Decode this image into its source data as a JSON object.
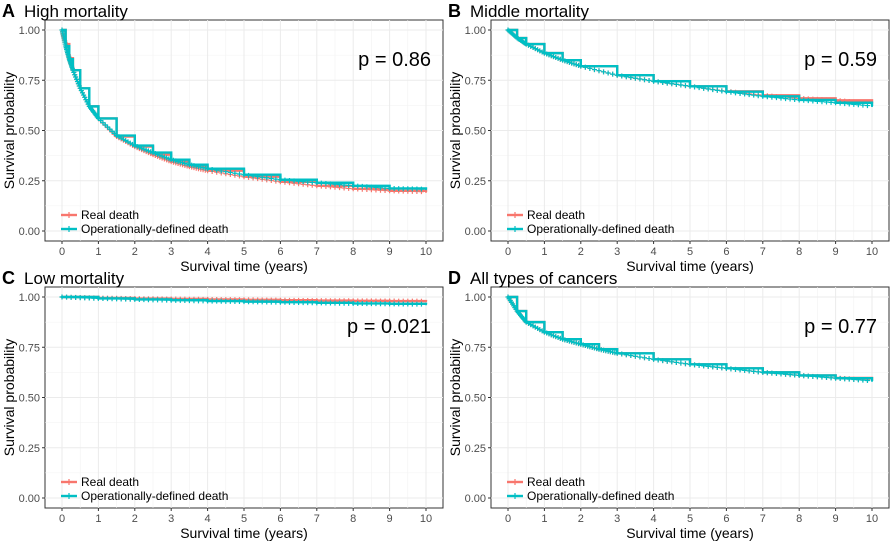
{
  "chart_data": [
    {
      "type": "line",
      "panel": "A",
      "title": "High mortality",
      "xlabel": "Survival time (years)",
      "ylabel": "Survival probability",
      "xlim": [
        0,
        10
      ],
      "ylim": [
        0,
        1
      ],
      "xticks": [
        "0",
        "1",
        "2",
        "3",
        "4",
        "5",
        "6",
        "7",
        "8",
        "9",
        "10"
      ],
      "yticks": [
        "0.00",
        "0.25",
        "0.50",
        "0.75",
        "1.00"
      ],
      "annotation": "p = 0.86",
      "legend": [
        "Real death",
        "Operationally-defined death"
      ],
      "legend_position": "bottom-left",
      "grid": true,
      "series": [
        {
          "name": "Real death",
          "color": "#F8766D",
          "x": [
            0,
            0.1,
            0.2,
            0.3,
            0.5,
            0.75,
            1,
            1.5,
            2,
            2.5,
            3,
            3.5,
            4,
            5,
            6,
            7,
            8,
            9,
            10
          ],
          "y": [
            1.0,
            0.93,
            0.86,
            0.8,
            0.71,
            0.62,
            0.56,
            0.47,
            0.42,
            0.38,
            0.345,
            0.32,
            0.3,
            0.27,
            0.245,
            0.225,
            0.21,
            0.2,
            0.195
          ]
        },
        {
          "name": "Operationally-defined death",
          "color": "#00BFC4",
          "x": [
            0,
            0.1,
            0.2,
            0.3,
            0.5,
            0.75,
            1,
            1.5,
            2,
            2.5,
            3,
            3.5,
            4,
            5,
            6,
            7,
            8,
            9,
            10
          ],
          "y": [
            1.0,
            0.92,
            0.855,
            0.8,
            0.71,
            0.62,
            0.56,
            0.475,
            0.425,
            0.39,
            0.355,
            0.33,
            0.31,
            0.28,
            0.255,
            0.24,
            0.225,
            0.212,
            0.208
          ]
        }
      ]
    },
    {
      "type": "line",
      "panel": "B",
      "title": "Middle mortality",
      "xlabel": "Survival time (years)",
      "ylabel": "Survival probability",
      "xlim": [
        0,
        10
      ],
      "ylim": [
        0,
        1
      ],
      "xticks": [
        "0",
        "1",
        "2",
        "3",
        "4",
        "5",
        "6",
        "7",
        "8",
        "9",
        "10"
      ],
      "yticks": [
        "0.00",
        "0.25",
        "0.50",
        "0.75",
        "1.00"
      ],
      "annotation": "p = 0.59",
      "legend": [
        "Real death",
        "Operationally-defined death"
      ],
      "legend_position": "bottom-left",
      "grid": true,
      "series": [
        {
          "name": "Real death",
          "color": "#F8766D",
          "x": [
            0,
            0.25,
            0.5,
            1,
            1.5,
            2,
            3,
            4,
            5,
            6,
            7,
            8,
            9,
            10
          ],
          "y": [
            1.0,
            0.96,
            0.93,
            0.885,
            0.85,
            0.82,
            0.775,
            0.745,
            0.72,
            0.695,
            0.675,
            0.66,
            0.65,
            0.635
          ]
        },
        {
          "name": "Operationally-defined death",
          "color": "#00BFC4",
          "x": [
            0,
            0.25,
            0.5,
            1,
            1.5,
            2,
            3,
            4,
            5,
            6,
            7,
            8,
            9,
            10
          ],
          "y": [
            1.0,
            0.96,
            0.93,
            0.885,
            0.85,
            0.82,
            0.775,
            0.745,
            0.72,
            0.693,
            0.67,
            0.652,
            0.638,
            0.622
          ]
        }
      ]
    },
    {
      "type": "line",
      "panel": "C",
      "title": "Low mortality",
      "xlabel": "Survival time (years)",
      "ylabel": "Survival probability",
      "xlim": [
        0,
        10
      ],
      "ylim": [
        0,
        1
      ],
      "xticks": [
        "0",
        "1",
        "2",
        "3",
        "4",
        "5",
        "6",
        "7",
        "8",
        "9",
        "10"
      ],
      "yticks": [
        "0.00",
        "0.25",
        "0.50",
        "0.75",
        "1.00"
      ],
      "annotation": "p = 0.021",
      "legend": [
        "Real death",
        "Operationally-defined death"
      ],
      "legend_position": "bottom-left",
      "grid": true,
      "series": [
        {
          "name": "Real death",
          "color": "#F8766D",
          "x": [
            0,
            1,
            2,
            3,
            4,
            5,
            6,
            7,
            8,
            9,
            10
          ],
          "y": [
            1.0,
            0.995,
            0.992,
            0.99,
            0.988,
            0.986,
            0.984,
            0.982,
            0.981,
            0.98,
            0.979
          ]
        },
        {
          "name": "Operationally-defined death",
          "color": "#00BFC4",
          "x": [
            0,
            1,
            2,
            3,
            4,
            5,
            6,
            7,
            8,
            9,
            10
          ],
          "y": [
            1.0,
            0.993,
            0.988,
            0.984,
            0.98,
            0.977,
            0.974,
            0.971,
            0.968,
            0.966,
            0.964
          ]
        }
      ]
    },
    {
      "type": "line",
      "panel": "D",
      "title": "All types of cancers",
      "xlabel": "Survival time (years)",
      "ylabel": "Survival probability",
      "xlim": [
        0,
        10
      ],
      "ylim": [
        0,
        1
      ],
      "xticks": [
        "0",
        "1",
        "2",
        "3",
        "4",
        "5",
        "6",
        "7",
        "8",
        "9",
        "10"
      ],
      "yticks": [
        "0.00",
        "0.25",
        "0.50",
        "0.75",
        "1.00"
      ],
      "annotation": "p = 0.77",
      "legend": [
        "Real death",
        "Operationally-defined death"
      ],
      "legend_position": "bottom-left",
      "grid": true,
      "series": [
        {
          "name": "Real death",
          "color": "#F8766D",
          "x": [
            0,
            0.25,
            0.5,
            1,
            1.5,
            2,
            2.5,
            3,
            4,
            5,
            6,
            7,
            8,
            9,
            10
          ],
          "y": [
            1.0,
            0.93,
            0.875,
            0.825,
            0.79,
            0.765,
            0.74,
            0.72,
            0.69,
            0.665,
            0.645,
            0.625,
            0.61,
            0.597,
            0.585
          ]
        },
        {
          "name": "Operationally-defined death",
          "color": "#00BFC4",
          "x": [
            0,
            0.25,
            0.5,
            1,
            1.5,
            2,
            2.5,
            3,
            4,
            5,
            6,
            7,
            8,
            9,
            10
          ],
          "y": [
            1.0,
            0.93,
            0.875,
            0.825,
            0.79,
            0.765,
            0.74,
            0.72,
            0.69,
            0.665,
            0.645,
            0.625,
            0.61,
            0.596,
            0.583
          ]
        }
      ]
    }
  ]
}
